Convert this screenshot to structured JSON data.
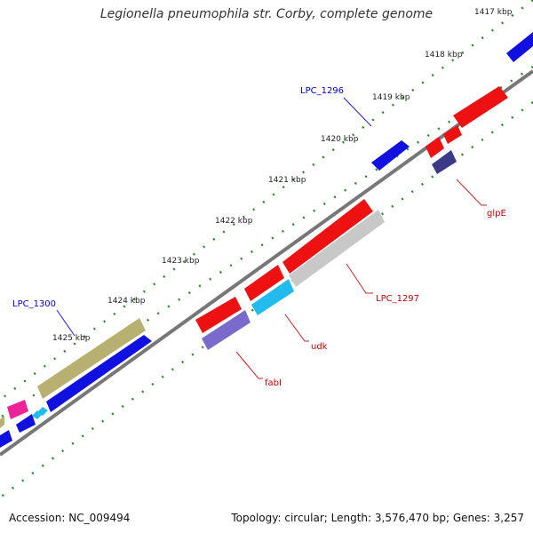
{
  "title": "Legionella pneumophila str. Corby, complete genome",
  "footer": {
    "accession": "Accession: NC_009494",
    "summary": "Topology: circular; Length: 3,576,470 bp; Genes: 3,257"
  },
  "ticks": [
    "1417 kbp",
    "1418 kbp",
    "1419 kbp",
    "1420 kbp",
    "1421 kbp",
    "1422 kbp",
    "1423 kbp",
    "1424 kbp",
    "1425 kbp"
  ],
  "labels": {
    "lpc1296": "LPC_1296",
    "lpc1300": "LPC_1300",
    "glpE": "glpE",
    "lpc1297": "LPC_1297",
    "udk": "udk",
    "fabI": "fabI"
  },
  "colors": {
    "backbone": "#777777",
    "dots": "#2a8a2a",
    "blue": "#1010e0",
    "red": "#ee1111",
    "gray": "#c8c8c8",
    "cyan": "#22bbee",
    "purple": "#7a6acc",
    "navy": "#3a3a88",
    "khaki": "#b8b070",
    "magenta": "#ee2299",
    "blue_label": "#0000cc",
    "red_label": "#cc0000"
  }
}
